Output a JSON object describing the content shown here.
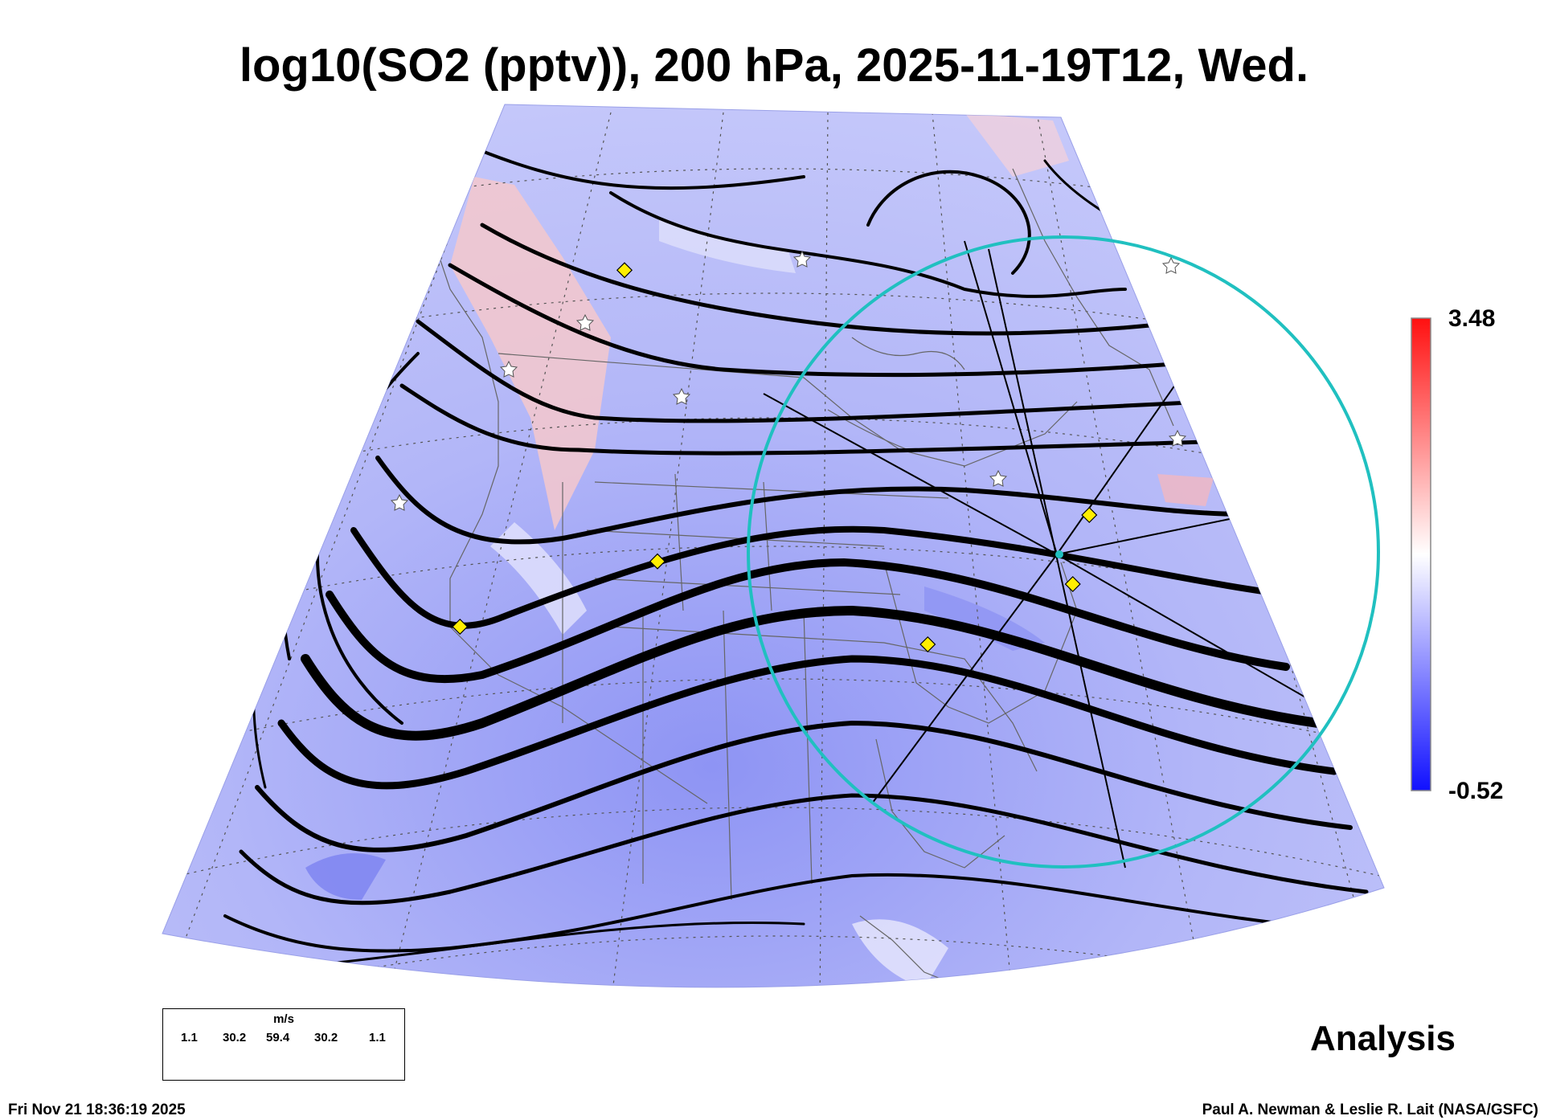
{
  "title": "log10(SO2 (pptv)), 200 hPa, 2025-11-19T12, Wed.",
  "colorbar": {
    "max_label": "3.48",
    "min_label": "-0.52",
    "colors": {
      "high": "#ff1010",
      "mid": "#ffffff",
      "low": "#1010ff"
    }
  },
  "wind_legend": {
    "unit": "m/s",
    "values": [
      "1.1",
      "30.2",
      "59.4",
      "30.2",
      "1.1"
    ]
  },
  "analysis_label": "Analysis",
  "footer": {
    "timestamp": "Fri Nov 21 18:36:19 2025",
    "credit": "Paul A. Newman & Leslie R. Lait (NASA/GSFC)"
  },
  "overlays": {
    "circle_color": "#20c0c0",
    "marker_color": "#ffee00",
    "station_icon": "star-icon",
    "marker_icon": "diamond-icon"
  }
}
